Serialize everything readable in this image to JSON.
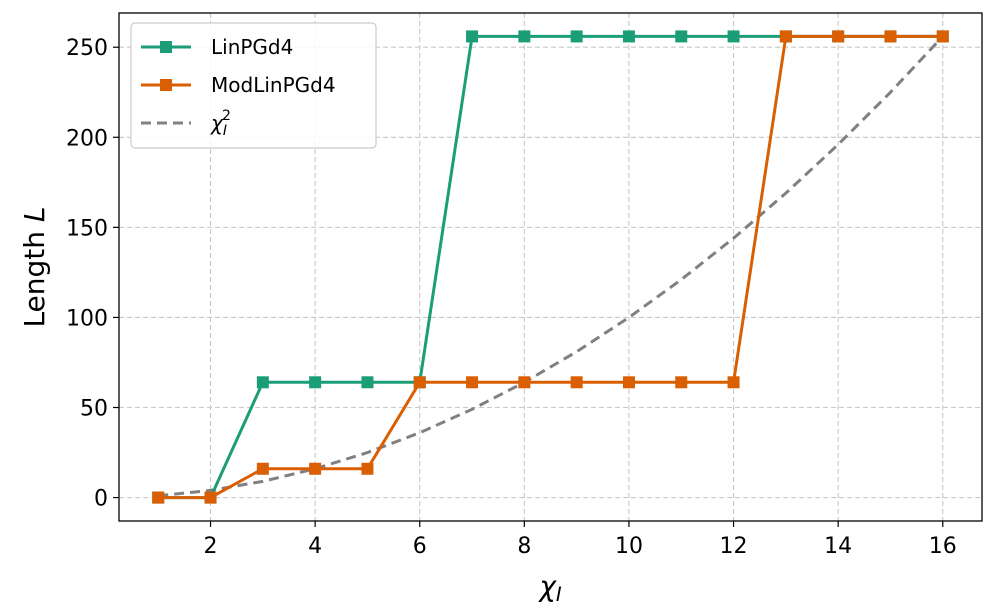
{
  "chart_data": {
    "type": "line",
    "xlabel": "χ_I",
    "ylabel": "Length L",
    "xlim": [
      0.25,
      16.75
    ],
    "ylim": [
      -13,
      269
    ],
    "xticks": [
      2,
      4,
      6,
      8,
      10,
      12,
      14,
      16
    ],
    "yticks": [
      0,
      50,
      100,
      150,
      200,
      250
    ],
    "grid": true,
    "legend_position": "top-left",
    "series": [
      {
        "name": "LinPGd4",
        "color": "#1b9e77",
        "style": "solid",
        "marker": "square",
        "x": [
          1,
          2,
          3,
          4,
          5,
          6,
          7,
          8,
          9,
          10,
          11,
          12,
          13,
          14,
          15,
          16
        ],
        "y": [
          0,
          0,
          64,
          64,
          64,
          64,
          256,
          256,
          256,
          256,
          256,
          256,
          256,
          256,
          256,
          256
        ]
      },
      {
        "name": "ModLinPGd4",
        "color": "#d95f02",
        "style": "solid",
        "marker": "square",
        "x": [
          1,
          2,
          3,
          4,
          5,
          6,
          7,
          8,
          9,
          10,
          11,
          12,
          13,
          14,
          15,
          16
        ],
        "y": [
          0,
          0,
          16,
          16,
          16,
          64,
          64,
          64,
          64,
          64,
          64,
          64,
          256,
          256,
          256,
          256
        ]
      },
      {
        "name": "χ_I^2",
        "color": "#808080",
        "style": "dashed",
        "marker": "none",
        "x": [
          1,
          2,
          3,
          4,
          5,
          6,
          7,
          8,
          9,
          10,
          11,
          12,
          13,
          14,
          15,
          16
        ],
        "y": [
          1,
          4,
          9,
          16,
          25,
          36,
          49,
          64,
          81,
          100,
          121,
          144,
          169,
          196,
          225,
          256
        ]
      }
    ]
  }
}
